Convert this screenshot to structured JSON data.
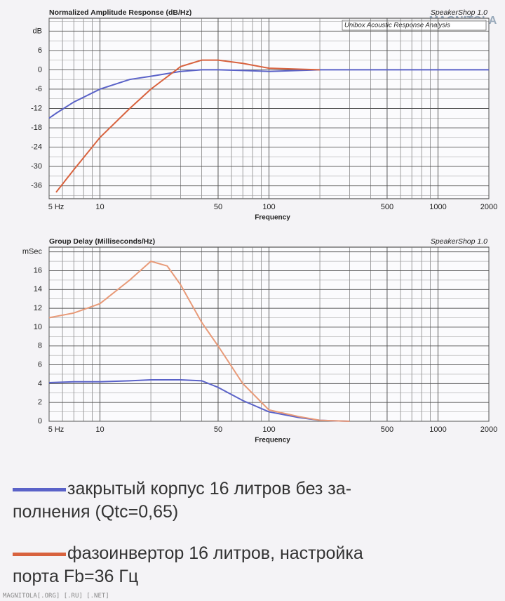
{
  "chart_data": [
    {
      "type": "line",
      "title": "Normalized Amplitude Response (dB/Hz)",
      "watermark": "SpeakerShop 1.0",
      "subtitle": "Unibox Acoustic Response Analysis",
      "x_label": "Frequency",
      "x_scale": "log",
      "grid": true,
      "xlim": [
        5,
        2000
      ],
      "xticks": [
        {
          "value": 5,
          "label": "5 Hz"
        },
        10,
        50,
        100,
        500,
        1000,
        2000
      ],
      "x_minor_ticks": [
        6,
        7,
        8,
        9,
        20,
        30,
        40,
        60,
        70,
        80,
        90,
        200,
        300,
        400,
        600,
        700,
        800,
        900
      ],
      "ylim": [
        -40,
        16
      ],
      "yticks": [
        {
          "value": 12,
          "label": "dB"
        },
        6,
        0,
        -6,
        -12,
        -18,
        -24,
        -30,
        -36
      ],
      "y_minor_ticks": [
        15,
        9,
        3,
        -3,
        -9,
        -15,
        -21,
        -27,
        -33,
        -39
      ],
      "x": [
        5,
        5.5,
        7,
        10,
        15,
        20,
        30,
        40,
        50,
        70,
        100,
        150,
        200,
        300,
        500,
        1000,
        2000
      ],
      "series": [
        {
          "name": "закрытый корпус 16 литров без за-\nполнения (Qtc=0,65)",
          "color": "#5a62c8",
          "values": [
            -15,
            -13.5,
            -10,
            -6,
            -3,
            -2,
            -0.5,
            0,
            0,
            -0.2,
            -0.5,
            -0.2,
            0,
            0,
            0,
            0,
            0
          ]
        },
        {
          "name": "фазоинвертор 16 литров, настройка\nпорта Fb=36 Гц",
          "color": "#d8623e",
          "values": [
            null,
            -38,
            -31,
            -21,
            -12,
            -6,
            1,
            3,
            3,
            2,
            0.5,
            0.2,
            0,
            null,
            null,
            null,
            null
          ]
        }
      ]
    },
    {
      "type": "line",
      "title": "Group Delay (Milliseconds/Hz)",
      "watermark": "SpeakerShop 1.0",
      "x_label": "Frequency",
      "x_scale": "log",
      "grid": true,
      "xlim": [
        5,
        2000
      ],
      "xticks": [
        {
          "value": 5,
          "label": "5 Hz"
        },
        10,
        50,
        100,
        500,
        1000,
        2000
      ],
      "x_minor_ticks": [
        6,
        7,
        8,
        9,
        20,
        30,
        40,
        60,
        70,
        80,
        90,
        200,
        300,
        400,
        600,
        700,
        800,
        900
      ],
      "ylim": [
        0,
        18.5
      ],
      "yticks": [
        0,
        2,
        4,
        6,
        8,
        10,
        12,
        14,
        16,
        {
          "value": 18,
          "label": "mSec"
        }
      ],
      "y_minor_ticks": [
        1,
        3,
        5,
        7,
        9,
        11,
        13,
        15,
        17
      ],
      "x": [
        5,
        7,
        10,
        15,
        20,
        25,
        30,
        40,
        50,
        70,
        100,
        150,
        200,
        300
      ],
      "series": [
        {
          "color": "#5a62c8",
          "values": [
            4.1,
            4.2,
            4.2,
            4.3,
            4.4,
            4.4,
            4.4,
            4.3,
            3.6,
            2.2,
            1.0,
            0.4,
            0.1,
            0
          ]
        },
        {
          "color": "#e89a78",
          "values": [
            11,
            11.5,
            12.5,
            15,
            17,
            16.5,
            14.5,
            10.5,
            8,
            4,
            1.2,
            0.5,
            0.1,
            0
          ]
        }
      ]
    }
  ],
  "logo": "MAGNITOLA",
  "footer": "MAGNITOLA[.ORG] [.RU] [.NET]"
}
